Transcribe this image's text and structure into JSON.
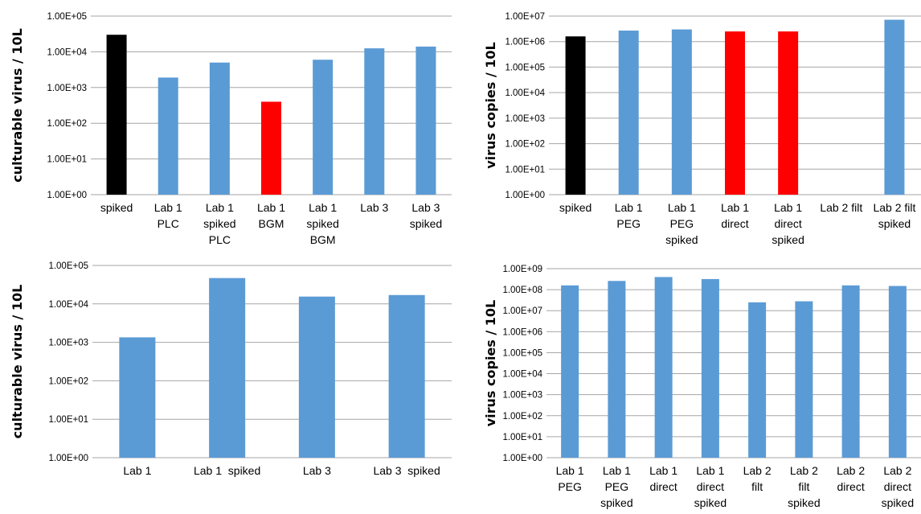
{
  "chart_data": [
    {
      "type": "bar",
      "log_scale": true,
      "ylabel": "culturable virus / 10L",
      "ylim": [
        1,
        100000
      ],
      "yticks": [
        "1.00E+00",
        "1.00E+01",
        "1.00E+02",
        "1.00E+03",
        "1.00E+04",
        "1.00E+05"
      ],
      "grid": true,
      "categories": [
        [
          "spiked"
        ],
        [
          "Lab 1",
          "PLC"
        ],
        [
          "Lab 1",
          "spiked",
          "PLC"
        ],
        [
          "Lab 1",
          "BGM"
        ],
        [
          "Lab 1",
          "spiked",
          "BGM"
        ],
        [
          "Lab 3"
        ],
        [
          "Lab 3",
          "spiked"
        ]
      ],
      "values": [
        30000,
        1900,
        5000,
        400,
        6000,
        12500,
        14000
      ],
      "bar_colors": [
        "#000000",
        "#5b9bd5",
        "#5b9bd5",
        "#ff0000",
        "#5b9bd5",
        "#5b9bd5",
        "#5b9bd5"
      ]
    },
    {
      "type": "bar",
      "log_scale": true,
      "ylabel": "virus copies / 10L",
      "ylim": [
        1,
        10000000
      ],
      "yticks": [
        "1.00E+00",
        "1.00E+01",
        "1.00E+02",
        "1.00E+03",
        "1.00E+04",
        "1.00E+05",
        "1.00E+06",
        "1.00E+07"
      ],
      "grid": true,
      "categories": [
        [
          "spiked"
        ],
        [
          "Lab 1",
          "PEG"
        ],
        [
          "Lab 1",
          "PEG",
          "spiked"
        ],
        [
          "Lab 1",
          "direct"
        ],
        [
          "Lab 1",
          "direct",
          "spiked"
        ],
        [
          "Lab 2 filt"
        ],
        [
          "Lab 2 filt",
          "spiked"
        ]
      ],
      "values": [
        1600000,
        2700000,
        3000000,
        2500000,
        2500000,
        null,
        7200000
      ],
      "bar_colors": [
        "#000000",
        "#5b9bd5",
        "#5b9bd5",
        "#ff0000",
        "#ff0000",
        "#5b9bd5",
        "#5b9bd5"
      ]
    },
    {
      "type": "bar",
      "log_scale": true,
      "ylabel": "culturable virus / 10L",
      "ylim": [
        1,
        100000
      ],
      "yticks": [
        "1.00E+00",
        "1.00E+01",
        "1.00E+02",
        "1.00E+03",
        "1.00E+04",
        "1.00E+05"
      ],
      "grid": true,
      "categories": [
        [
          "Lab 1"
        ],
        [
          "Lab 1  spiked"
        ],
        [
          "Lab 3"
        ],
        [
          "Lab 3  spiked"
        ]
      ],
      "values": [
        1350,
        47000,
        15500,
        17000
      ],
      "bar_colors": [
        "#5b9bd5",
        "#5b9bd5",
        "#5b9bd5",
        "#5b9bd5"
      ]
    },
    {
      "type": "bar",
      "log_scale": true,
      "ylabel": "virus copies / 10L",
      "ylim": [
        1,
        1000000000
      ],
      "yticks": [
        "1.00E+00",
        "1.00E+01",
        "1.00E+02",
        "1.00E+03",
        "1.00E+04",
        "1.00E+05",
        "1.00E+06",
        "1.00E+07",
        "1.00E+08",
        "1.00E+09"
      ],
      "grid": true,
      "categories": [
        [
          "Lab 1",
          "PEG"
        ],
        [
          "Lab 1",
          "PEG",
          "spiked"
        ],
        [
          "Lab 1",
          "direct"
        ],
        [
          "Lab 1",
          "direct",
          "spiked"
        ],
        [
          "Lab 2",
          "filt"
        ],
        [
          "Lab 2",
          "filt",
          "spiked"
        ],
        [
          "Lab 2",
          "direct"
        ],
        [
          "Lab 2",
          "direct",
          "spiked"
        ]
      ],
      "values": [
        160000000,
        260000000,
        400000000,
        320000000,
        25000000,
        28000000,
        160000000,
        150000000
      ],
      "bar_colors": [
        "#5b9bd5",
        "#5b9bd5",
        "#5b9bd5",
        "#5b9bd5",
        "#5b9bd5",
        "#5b9bd5",
        "#5b9bd5",
        "#5b9bd5"
      ]
    }
  ]
}
